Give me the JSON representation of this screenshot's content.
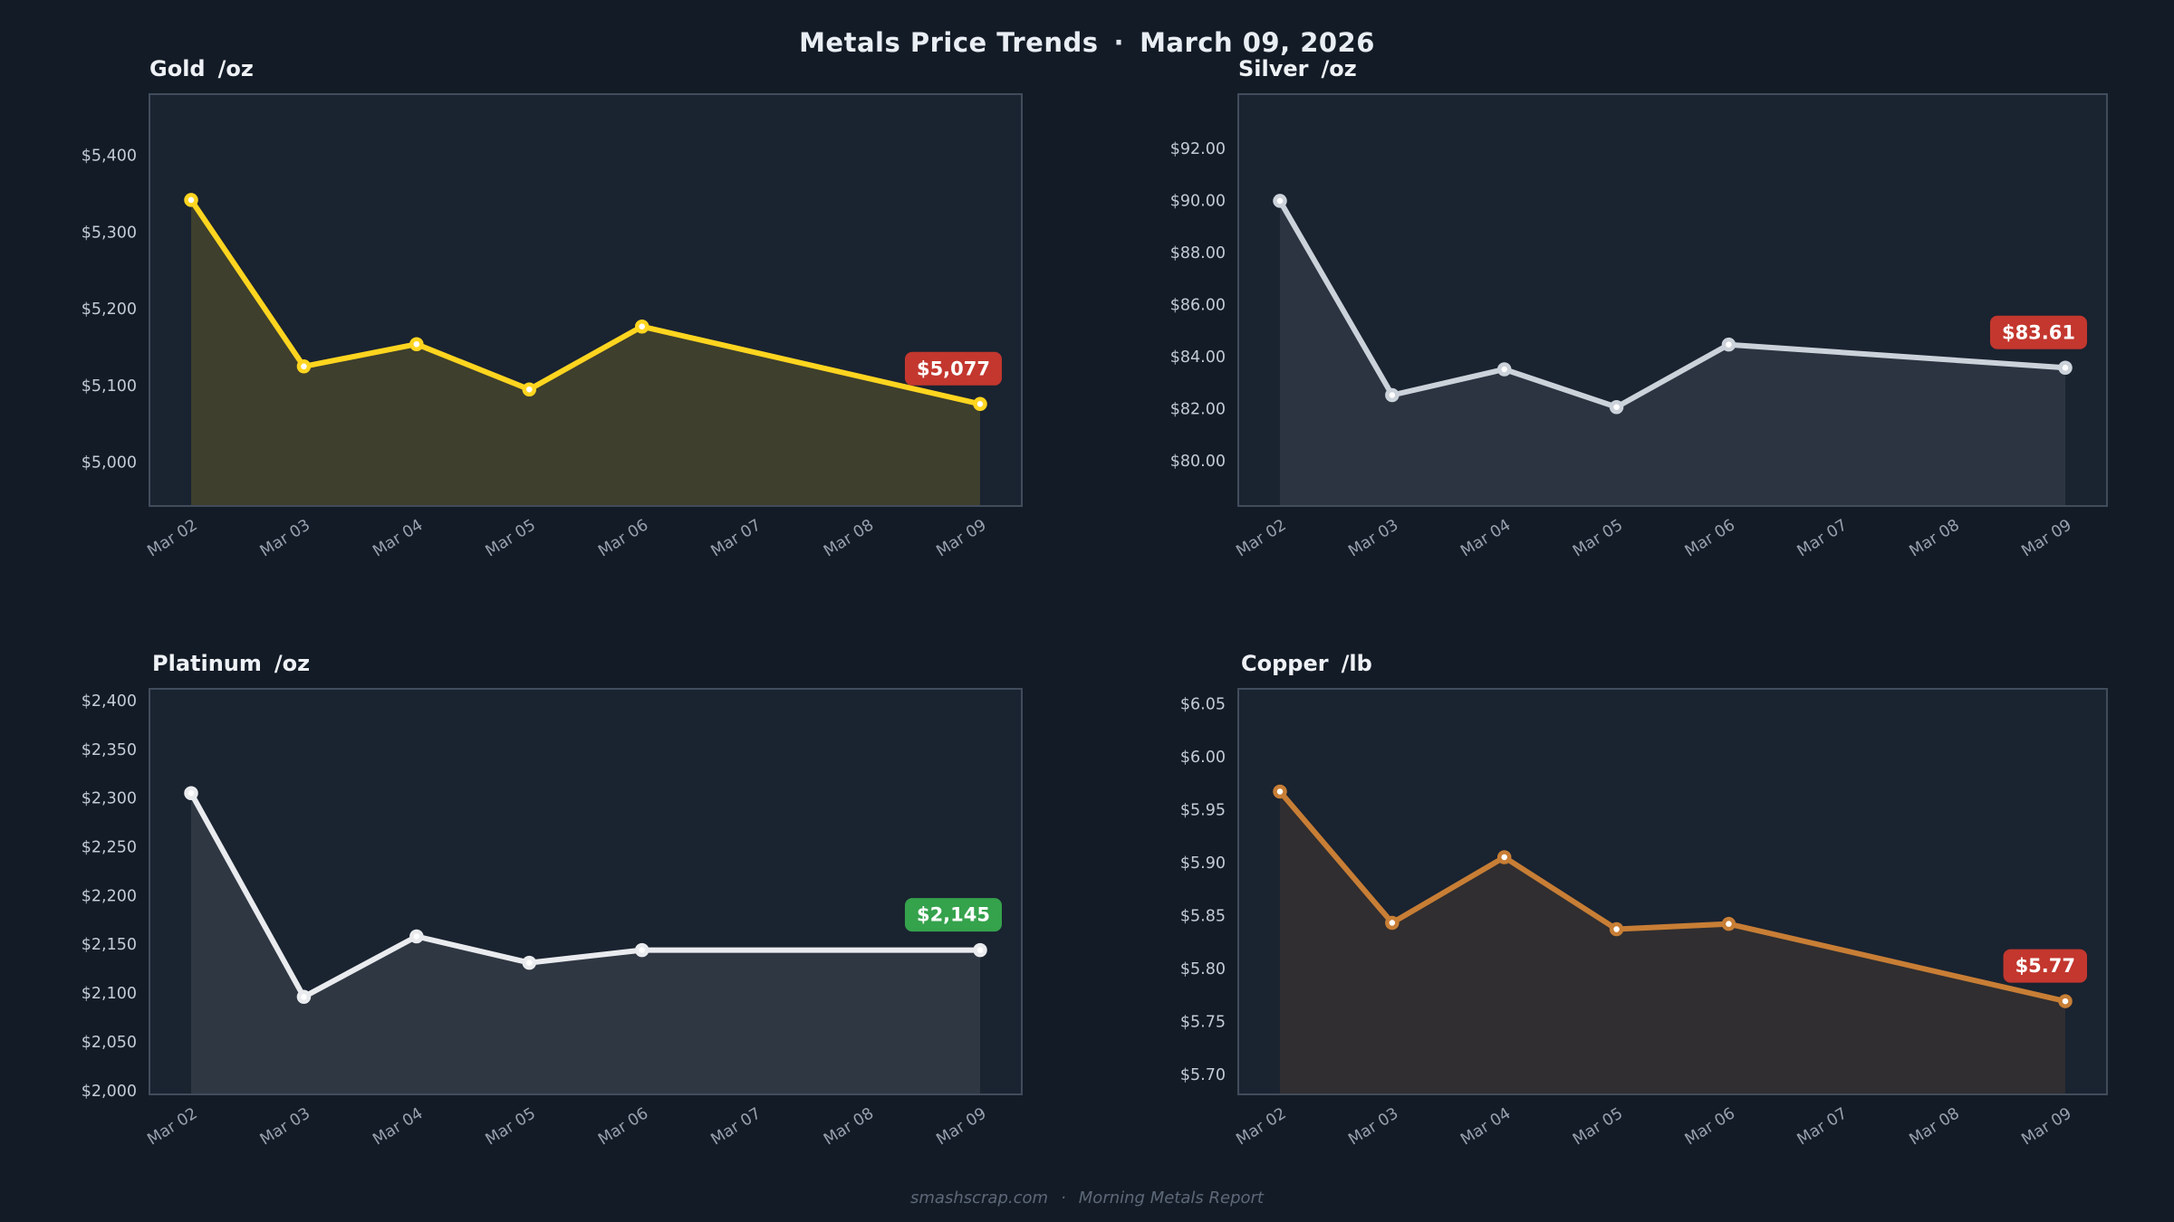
{
  "header": {
    "title_left": "Metals Price Trends",
    "separator": "·",
    "title_right": "March 09, 2026"
  },
  "footer": {
    "site": "smashscrap.com",
    "separator": "·",
    "report": "Morning Metals Report"
  },
  "colors": {
    "page_bg": "#131b26",
    "plot_bg": "#1a2330",
    "plot_border": "#414c5b",
    "y_tick_text": "#c3cbd6",
    "x_tick_text": "#97a1ae",
    "badge_text": "#ffffff",
    "badge_red": "#c3372e",
    "badge_green": "#35a24c",
    "marker_core": "#ffffff"
  },
  "x_labels": [
    "Mar 02",
    "Mar 03",
    "Mar 04",
    "Mar 05",
    "Mar 06",
    "Mar 07",
    "Mar 08",
    "Mar 09"
  ],
  "chart_data": [
    {
      "type": "area",
      "title": "Gold",
      "unit": "/oz",
      "x": [
        "Mar 02",
        "Mar 03",
        "Mar 04",
        "Mar 05",
        "Mar 06",
        "Mar 09"
      ],
      "x_indices": [
        0,
        1,
        2,
        3,
        4,
        7
      ],
      "values": [
        5343,
        5126,
        5155,
        5096,
        5178,
        5077
      ],
      "ylim": [
        4944,
        5481
      ],
      "yticks": [
        5400,
        5300,
        5200,
        5100,
        5000
      ],
      "ytick_labels": [
        "$5,400",
        "$5,300",
        "$5,200",
        "$5,100",
        "$5,000"
      ],
      "grid": false,
      "legend": "none",
      "line_color": "#ffd51f",
      "fill_opacity": 0.16,
      "badge": {
        "label": "$5,077",
        "color": "#c3372e"
      }
    },
    {
      "type": "area",
      "title": "Silver",
      "unit": "/oz",
      "x": [
        "Mar 02",
        "Mar 03",
        "Mar 04",
        "Mar 05",
        "Mar 06",
        "Mar 09"
      ],
      "x_indices": [
        0,
        1,
        2,
        3,
        4,
        7
      ],
      "values": [
        90.02,
        82.56,
        83.55,
        82.1,
        84.5,
        83.61
      ],
      "ylim": [
        78.3,
        94.12
      ],
      "yticks": [
        92,
        90,
        88,
        86,
        84,
        82,
        80
      ],
      "ytick_labels": [
        "$92.00",
        "$90.00",
        "$88.00",
        "$86.00",
        "$84.00",
        "$82.00",
        "$80.00"
      ],
      "grid": false,
      "legend": "none",
      "line_color": "#ccd2da",
      "fill_opacity": 0.1,
      "badge": {
        "label": "$83.61",
        "color": "#c3372e"
      }
    },
    {
      "type": "area",
      "title": "Platinum",
      "unit": "/oz",
      "x": [
        "Mar 02",
        "Mar 03",
        "Mar 04",
        "Mar 05",
        "Mar 06",
        "Mar 09"
      ],
      "x_indices": [
        0,
        1,
        2,
        3,
        4,
        7
      ],
      "values": [
        2306,
        2097,
        2159,
        2132,
        2145,
        2145
      ],
      "ylim": [
        1997,
        2413
      ],
      "yticks": [
        2400,
        2350,
        2300,
        2250,
        2200,
        2150,
        2100,
        2050,
        2000
      ],
      "ytick_labels": [
        "$2,400",
        "$2,350",
        "$2,300",
        "$2,250",
        "$2,200",
        "$2,150",
        "$2,100",
        "$2,050",
        "$2,000"
      ],
      "grid": false,
      "legend": "none",
      "line_color": "#e9ebee",
      "fill_opacity": 0.1,
      "badge": {
        "label": "$2,145",
        "color": "#35a24c"
      }
    },
    {
      "type": "area",
      "title": "Copper",
      "unit": "/lb",
      "x": [
        "Mar 02",
        "Mar 03",
        "Mar 04",
        "Mar 05",
        "Mar 06",
        "Mar 09"
      ],
      "x_indices": [
        0,
        1,
        2,
        3,
        4,
        7
      ],
      "values": [
        5.968,
        5.844,
        5.906,
        5.838,
        5.843,
        5.77
      ],
      "ylim": [
        5.682,
        6.065
      ],
      "yticks": [
        6.05,
        6.0,
        5.95,
        5.9,
        5.85,
        5.8,
        5.75,
        5.7
      ],
      "ytick_labels": [
        "$6.05",
        "$6.00",
        "$5.95",
        "$5.90",
        "$5.85",
        "$5.80",
        "$5.75",
        "$5.70"
      ],
      "grid": false,
      "legend": "none",
      "line_color": "#c87e35",
      "fill_opacity": 0.13,
      "badge": {
        "label": "$5.77",
        "color": "#c3372e"
      }
    }
  ]
}
